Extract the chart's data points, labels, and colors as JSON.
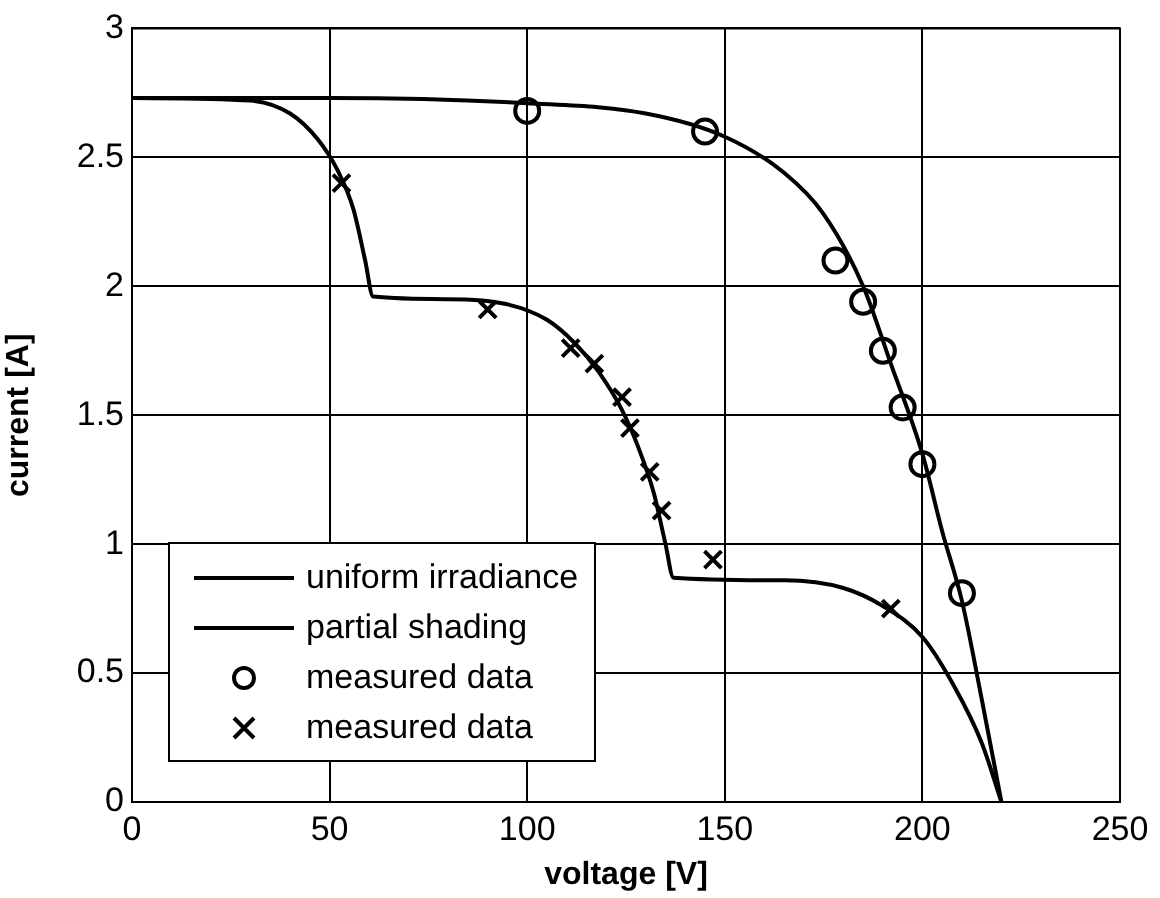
{
  "chart_data": {
    "type": "line",
    "xlabel": "voltage [V]",
    "ylabel": "current [A]",
    "xlim": [
      0,
      250
    ],
    "xticks": [
      0,
      50,
      100,
      150,
      200,
      250
    ],
    "ylim": [
      0,
      3
    ],
    "yticks": [
      0,
      {
        "value": 0.5,
        "label": "0.5"
      },
      1,
      {
        "value": 1.5,
        "label": "1.5"
      },
      2,
      {
        "value": 2.5,
        "label": "2.5"
      },
      3
    ],
    "grid": true,
    "legend": "bottom left",
    "line_style": "solid",
    "series": [
      {
        "name": "uniform irradiance",
        "marker": "none",
        "color": "#000000",
        "x": [
          0,
          50,
          100,
          130,
          150,
          165,
          175,
          185,
          192,
          200,
          205,
          210,
          215,
          220
        ],
        "values": [
          2.73,
          2.73,
          2.71,
          2.67,
          2.58,
          2.44,
          2.28,
          2.0,
          1.7,
          1.35,
          1.05,
          0.78,
          0.4,
          0
        ]
      },
      {
        "name": "partial shading",
        "marker": "none",
        "color": "#000000",
        "x": [
          0,
          30,
          40,
          47,
          52,
          56,
          59,
          61,
          80,
          95,
          105,
          112,
          118,
          124,
          128,
          132,
          135,
          137,
          165,
          180,
          190,
          200,
          208,
          215,
          220
        ],
        "values": [
          2.73,
          2.72,
          2.67,
          2.57,
          2.45,
          2.3,
          2.1,
          1.96,
          1.95,
          1.93,
          1.87,
          1.78,
          1.67,
          1.52,
          1.38,
          1.2,
          1.0,
          0.87,
          0.86,
          0.83,
          0.76,
          0.64,
          0.45,
          0.23,
          0
        ]
      },
      {
        "name": "measured data",
        "type": "scatter",
        "marker": "circle",
        "color": "#000000",
        "x": [
          100,
          145,
          178,
          185,
          190,
          195,
          200,
          210
        ],
        "values": [
          2.68,
          2.6,
          2.1,
          1.94,
          1.75,
          1.53,
          1.31,
          0.81
        ]
      },
      {
        "name": "measured data",
        "type": "scatter",
        "marker": "cross",
        "color": "#000000",
        "x": [
          53,
          90,
          111,
          117,
          124,
          126,
          131,
          134,
          147,
          192
        ],
        "values": [
          2.4,
          1.91,
          1.76,
          1.7,
          1.57,
          1.45,
          1.28,
          1.13,
          0.94,
          0.75
        ]
      }
    ]
  }
}
